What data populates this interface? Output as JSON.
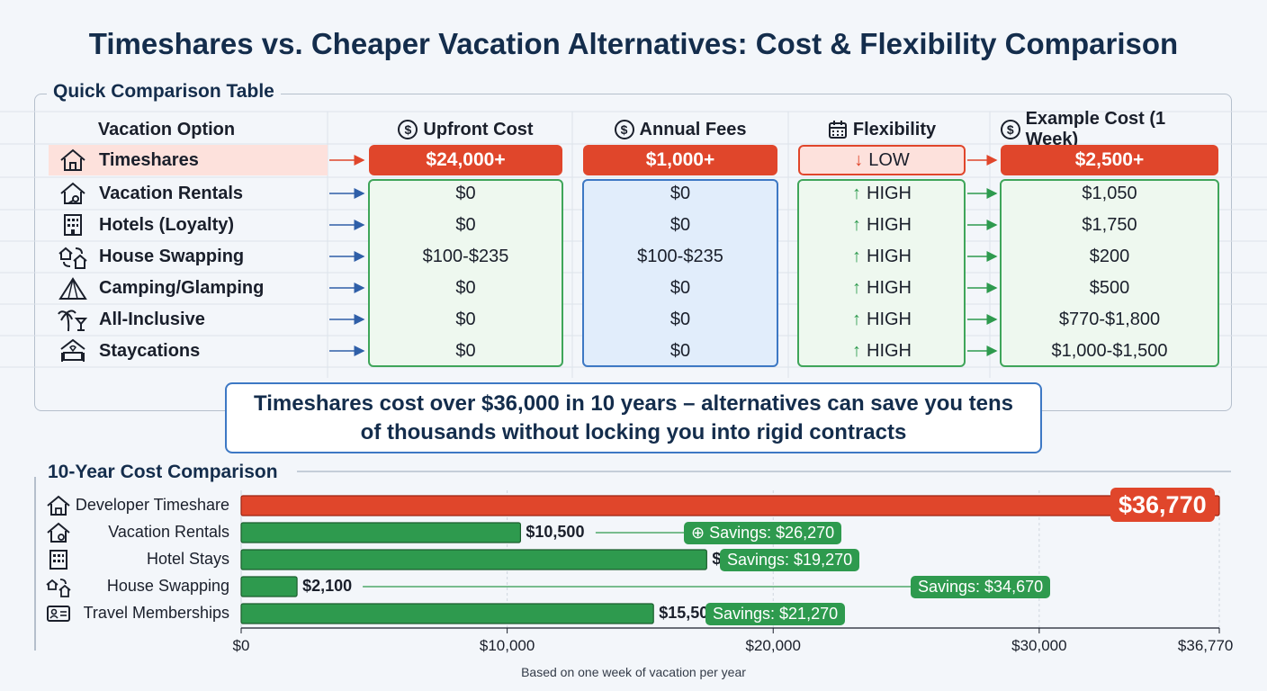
{
  "title": "Timeshares vs. Cheaper Vacation Alternatives: Cost & Flexibility Comparison",
  "table": {
    "section_title": "Quick Comparison Table",
    "headers": {
      "option": "Vacation Option",
      "upfront": "Upfront Cost",
      "annual": "Annual Fees",
      "flexibility": "Flexibility",
      "example": "Example Cost (1 Week)"
    },
    "rows": [
      {
        "option": "Timeshares",
        "icon": "house-icon",
        "upfront": "$24,000+",
        "annual": "$1,000+",
        "flexibility": "LOW",
        "example": "$2,500+"
      },
      {
        "option": "Vacation Rentals",
        "icon": "house-key-icon",
        "upfront": "$0",
        "annual": "$0",
        "flexibility": "HIGH",
        "example": "$1,050"
      },
      {
        "option": "Hotels (Loyalty)",
        "icon": "hotel-building-icon",
        "upfront": "$0",
        "annual": "$0",
        "flexibility": "HIGH",
        "example": "$1,750"
      },
      {
        "option": "House Swapping",
        "icon": "house-swap-icon",
        "upfront": "$100-$235",
        "annual": "$100-$235",
        "flexibility": "HIGH",
        "example": "$200"
      },
      {
        "option": "Camping/Glamping",
        "icon": "tent-icon",
        "upfront": "$0",
        "annual": "$0",
        "flexibility": "HIGH",
        "example": "$500"
      },
      {
        "option": "All-Inclusive",
        "icon": "palm-cocktail-icon",
        "upfront": "$0",
        "annual": "$0",
        "flexibility": "HIGH",
        "example": "$770-$1,800"
      },
      {
        "option": "Staycations",
        "icon": "home-couch-icon",
        "upfront": "$0",
        "annual": "$0",
        "flexibility": "HIGH",
        "example": "$1,000-$1,500"
      }
    ]
  },
  "callout": "Timeshares cost over $36,000 in 10 years – alternatives can save you tens of thousands without locking you into rigid contracts",
  "chart_data": {
    "type": "bar",
    "orientation": "horizontal",
    "title": "10-Year Cost Comparison",
    "categories": [
      "Developer Timeshare",
      "Vacation Rentals",
      "Hotel Stays",
      "House Swapping",
      "Travel Memberships"
    ],
    "icons": [
      "house-icon",
      "house-key-icon",
      "hotel-building-icon",
      "house-swap-icon",
      "id-card-icon"
    ],
    "values": [
      36770,
      10500,
      17500,
      2100,
      15500
    ],
    "value_labels": [
      "$36,770",
      "$10,500",
      "$17,500",
      "$2,100",
      "$15,500"
    ],
    "savings_labels": [
      "",
      "Savings: $26,270",
      "Savings: $19,270",
      "Savings: $34,670",
      "Savings: $21,270"
    ],
    "colors": [
      "#e0462b",
      "#2e9a4e",
      "#2e9a4e",
      "#2e9a4e",
      "#2e9a4e"
    ],
    "xlim": [
      0,
      36770
    ],
    "xticks": [
      0,
      10000,
      20000,
      30000,
      36770
    ],
    "xtick_labels": [
      "$0",
      "$10,000",
      "$20,000",
      "$30,000",
      "$36,770"
    ],
    "footnote": "Based on one week of vacation per year",
    "grid": true
  }
}
